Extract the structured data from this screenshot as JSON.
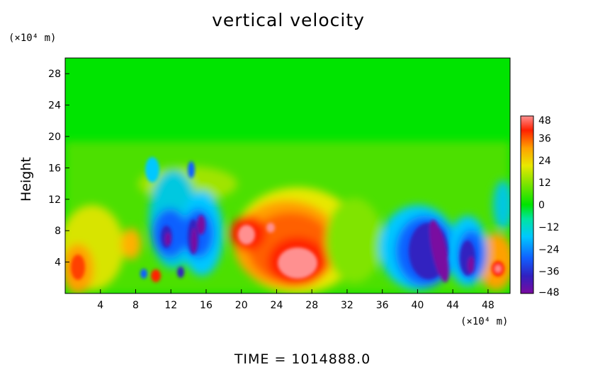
{
  "title": "vertical velocity",
  "y_unit": "(×10⁴ m)",
  "x_unit": "(×10⁴ m)",
  "ylabel": "Height",
  "time_label": "TIME  =  1014888.0",
  "colors": {
    "background_field": "#00e400",
    "colorbar": [
      "#7a0aa0",
      "#3020c0",
      "#1060ff",
      "#00c8ff",
      "#00e4a0",
      "#00e400",
      "#80e400",
      "#e8e800",
      "#ffa000",
      "#ff2000",
      "#ff9090"
    ]
  },
  "chart_data": {
    "type": "heatmap",
    "title": "vertical velocity",
    "xlabel": "",
    "ylabel": "Height",
    "x_ticks": [
      4,
      8,
      12,
      16,
      20,
      24,
      28,
      32,
      36,
      40,
      44,
      48
    ],
    "y_ticks": [
      4,
      8,
      12,
      16,
      20,
      24,
      28
    ],
    "xlim": [
      0,
      50.5
    ],
    "ylim": [
      0,
      30
    ],
    "colorbar_ticks": [
      48,
      36,
      24,
      12,
      0,
      -12,
      -24,
      -36,
      -48
    ],
    "colorbar_range": [
      -48,
      48
    ],
    "features": [
      {
        "x": 26.5,
        "y": 4.5,
        "value": 44
      },
      {
        "x": 22.0,
        "y": 7.5,
        "value": 46
      },
      {
        "x": 13.0,
        "y": 6.5,
        "value": -40
      },
      {
        "x": 16.0,
        "y": 8.0,
        "value": -44
      },
      {
        "x": 43.0,
        "y": 5.0,
        "value": -48
      },
      {
        "x": 46.5,
        "y": 3.5,
        "value": -44
      },
      {
        "x": 49.0,
        "y": 3.5,
        "value": 38
      },
      {
        "x": 3.0,
        "y": 4.0,
        "value": 28
      },
      {
        "x": 8.5,
        "y": 6.5,
        "value": 24
      },
      {
        "x": 10.5,
        "y": 2.5,
        "value": 34
      },
      {
        "x": 9.5,
        "y": 2.5,
        "value": -36
      }
    ]
  }
}
